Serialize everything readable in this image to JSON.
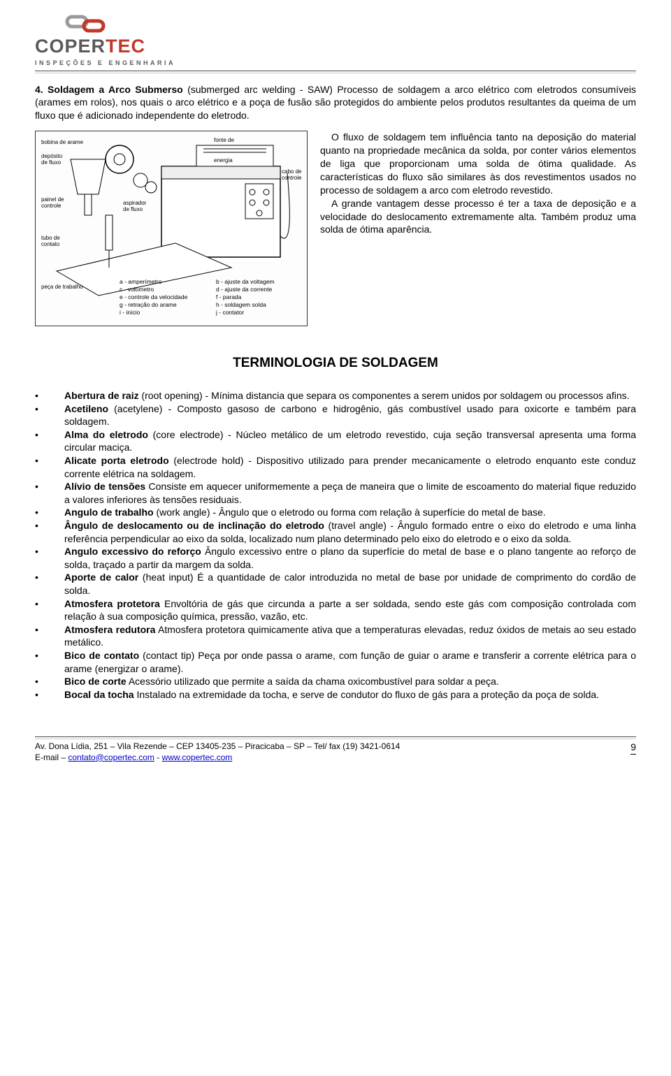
{
  "header": {
    "logo_prefix": "COPER",
    "logo_suffix": "TEC",
    "subtitle": "INSPEÇÕES E ENGENHARIA"
  },
  "intro": {
    "heading": "4. Soldagem a Arco Submerso",
    "body": " (submerged arc welding - SAW) Processo de soldagem a arco elétrico com eletrodos consumíveis (arames em rolos), nos quais o arco elétrico e a poça de fusão são protegidos do ambiente pelos produtos resultantes da queima de um fluxo que é adicionado independente do eletrodo."
  },
  "side": {
    "p1": "O fluxo de soldagem tem influência tanto na deposição do material quanto na propriedade mecânica da solda, por conter vários elementos de liga que proporcionam uma solda de ótima qualidade. As características do fluxo são similares às dos revestimentos usados no processo de soldagem a arco com eletrodo revestido.",
    "p2": "A grande vantagem desse processo é ter a taxa de deposição e a velocidade do deslocamento extremamente alta. Também produz uma solda de ótima aparência."
  },
  "terminology_title": "TERMINOLOGIA DE SOLDAGEM",
  "terms": [
    {
      "t": "Abertura de raiz",
      "d": " (root opening) - Mínima distancia que separa os componentes a serem unidos por soldagem ou processos afins."
    },
    {
      "t": "Acetileno",
      "d": " (acetylene) - Composto gasoso de carbono e hidrogênio, gás combustível usado para oxicorte e também para soldagem."
    },
    {
      "t": "Alma do eletrodo",
      "d": " (core electrode) - Núcleo metálico de um eletrodo revestido, cuja seção transversal apresenta uma forma circular maciça."
    },
    {
      "t": "Alicate porta eletrodo",
      "d": " (electrode hold) - Dispositivo utilizado para prender mecanicamente o eletrodo enquanto este conduz corrente elétrica na soldagem."
    },
    {
      "t": "Alívio de tensões",
      "d": " Consiste em aquecer uniformemente a peça de maneira que o limite de escoamento do material fique reduzido a valores inferiores às tensões residuais."
    },
    {
      "t": "Angulo de trabalho",
      "d": " (work angle) - Ângulo que o eletrodo ou forma com relação à superfície do metal de base."
    },
    {
      "t": "Ângulo de deslocamento ou de inclinação do eletrodo",
      "d": " (travel angle) - Ângulo formado entre o eixo do eletrodo e uma linha referência perpendicular ao eixo da solda, localizado num plano determinado pelo eixo do eletrodo e o eixo da solda."
    },
    {
      "t": "Angulo excessivo do reforço",
      "d": " Ângulo excessivo entre o plano da superfície do metal de base e o plano tangente ao reforço de solda, traçado a partir da margem da solda."
    },
    {
      "t": "Aporte de calor",
      "d": " (heat input) É a quantidade de calor introduzida no metal de base por unidade de comprimento do cordão de solda."
    },
    {
      "t": "Atmosfera protetora",
      "d": " Envoltória de gás que circunda a parte a ser soldada, sendo este gás com composição controlada com relação à sua composição química, pressão, vazão, etc."
    },
    {
      "t": "Atmosfera redutora",
      "d": " Atmosfera protetora quimicamente ativa que a temperaturas elevadas, reduz óxidos de metais ao seu estado metálico."
    },
    {
      "t": "Bico de contato",
      "d": " (contact tip) Peça por onde passa o arame, com função de guiar o arame e transferir a corrente elétrica para o arame (energizar o arame)."
    },
    {
      "t": "Bico de corte",
      "d": " Acessório utilizado que permite a saída da chama oxicombustível para soldar a peça."
    },
    {
      "t": "Bocal da tocha",
      "d": " Instalado na extremidade da tocha, e serve de condutor do fluxo de gás para a proteção da poça de solda."
    }
  ],
  "footer": {
    "address": "Av. Dona Lídia, 251 – Vila Rezende – CEP 13405-235 – Piracicaba – SP – Tel/ fax (19) 3421-0614",
    "email_label": "E-mail – ",
    "email": "contato@copertec.com",
    "sep": " - ",
    "url": "www.copertec.com",
    "page": "9"
  },
  "figure": {
    "labels_left": [
      "bobina de arame",
      "depósito de fluxo",
      "painel de controle",
      "tubo de contato",
      "peça de trabalho"
    ],
    "labels_mid": [
      "aspirador de fluxo"
    ],
    "labels_right_top": [
      "fonte de energia",
      "cabo de controle"
    ],
    "legend": [
      "a - amperímetro",
      "c - voltímetro",
      "e - controle da velocidade",
      "g - retração do arame",
      "i - início",
      "b - ajuste da voltagem",
      "d - ajuste da corrente",
      "f - parada",
      "h - soldagem solda",
      "j - contator"
    ]
  },
  "colors": {
    "logo_gray": "#5a5a5a",
    "logo_red": "#c0392b",
    "text": "#000000",
    "link": "#0000cc",
    "rule": "#4a4a4a"
  }
}
